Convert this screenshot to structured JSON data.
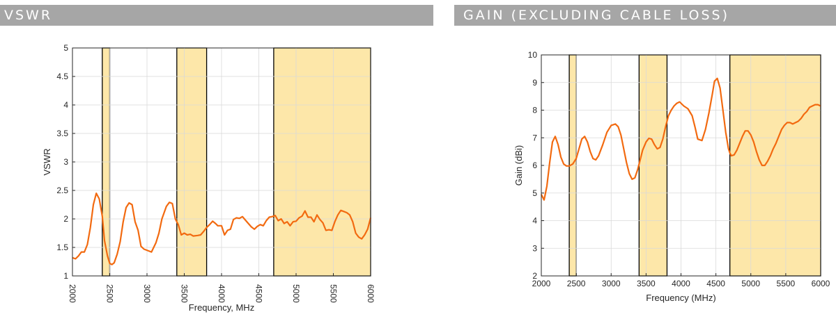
{
  "headers": {
    "vswr": "VSWR",
    "gain": "GAIN (EXCLUDING CABLE LOSS)"
  },
  "colors": {
    "curve": "#f26a10",
    "band_fill": "#fde7a9",
    "band_edge": "#000000",
    "grid": "#d9d9d9",
    "header_bg": "#a6a6a6"
  },
  "chart_data": [
    {
      "type": "line",
      "xlabel": "Frequency, MHz",
      "ylabel": "VSWR",
      "xlim": [
        2000,
        6000
      ],
      "ylim": [
        1,
        5
      ],
      "xticks": [
        "2000",
        "2500",
        "3000",
        "3500",
        "4000",
        "4500",
        "5000",
        "5500",
        "6000"
      ],
      "yticks": [
        "1",
        "1.5",
        "2",
        "2.5",
        "3",
        "3.5",
        "4",
        "4.5",
        "5"
      ],
      "x_tick_rotation": 90,
      "grid": true,
      "shaded_bands": [
        [
          2400,
          2500
        ],
        [
          3400,
          3800
        ],
        [
          4700,
          6000
        ]
      ],
      "series": [
        {
          "x": [
            2000,
            2040,
            2080,
            2120,
            2160,
            2200,
            2240,
            2280,
            2320,
            2360,
            2400,
            2430,
            2470,
            2500,
            2530,
            2560,
            2600,
            2640,
            2680,
            2720,
            2760,
            2800,
            2840,
            2880,
            2920,
            2960,
            3000,
            3060,
            3120,
            3160,
            3200,
            3260,
            3300,
            3340,
            3380,
            3420,
            3460,
            3500,
            3540,
            3580,
            3620,
            3680,
            3720,
            3760,
            3800,
            3840,
            3880,
            3920,
            3950,
            4000,
            4040,
            4080,
            4120,
            4160,
            4200,
            4240,
            4280,
            4320,
            4360,
            4400,
            4440,
            4480,
            4520,
            4560,
            4600,
            4640,
            4680,
            4720,
            4760,
            4800,
            4840,
            4880,
            4920,
            4960,
            5000,
            5040,
            5080,
            5120,
            5160,
            5200,
            5240,
            5280,
            5320,
            5360,
            5400,
            5440,
            5480,
            5520,
            5560,
            5600,
            5640,
            5680,
            5720,
            5760,
            5800,
            5840,
            5880,
            5920,
            5960,
            6000
          ],
          "y": [
            1.32,
            1.3,
            1.35,
            1.42,
            1.42,
            1.55,
            1.85,
            2.25,
            2.45,
            2.35,
            2.05,
            1.62,
            1.35,
            1.22,
            1.2,
            1.23,
            1.38,
            1.6,
            1.95,
            2.2,
            2.28,
            2.25,
            1.95,
            1.8,
            1.52,
            1.47,
            1.45,
            1.42,
            1.58,
            1.75,
            2.0,
            2.22,
            2.29,
            2.27,
            2.0,
            1.9,
            1.72,
            1.75,
            1.72,
            1.73,
            1.7,
            1.71,
            1.72,
            1.78,
            1.85,
            1.9,
            1.96,
            1.92,
            1.88,
            1.88,
            1.72,
            1.8,
            1.82,
            1.99,
            2.02,
            2.01,
            2.04,
            1.98,
            1.92,
            1.86,
            1.82,
            1.87,
            1.9,
            1.88,
            1.97,
            2.03,
            2.04,
            2.06,
            1.97,
            2.0,
            1.92,
            1.95,
            1.88,
            1.95,
            1.96,
            2.02,
            2.05,
            2.14,
            2.03,
            2.03,
            1.95,
            2.07,
            1.99,
            1.93,
            1.8,
            1.81,
            1.8,
            1.95,
            2.07,
            2.15,
            2.13,
            2.11,
            2.07,
            1.95,
            1.75,
            1.68,
            1.65,
            1.72,
            1.82,
            2.02
          ]
        }
      ]
    },
    {
      "type": "line",
      "xlabel": "Frequency (MHz)",
      "ylabel": "Gain (dBi)",
      "xlim": [
        2000,
        6000
      ],
      "ylim": [
        2,
        10
      ],
      "xticks": [
        "2000",
        "2500",
        "3000",
        "3500",
        "4000",
        "4500",
        "5000",
        "5500",
        "6000"
      ],
      "yticks": [
        "2",
        "3",
        "4",
        "5",
        "6",
        "7",
        "8",
        "9",
        "10"
      ],
      "grid": true,
      "shaded_bands": [
        [
          2400,
          2500
        ],
        [
          3400,
          3800
        ],
        [
          4700,
          6000
        ]
      ],
      "series": [
        {
          "x": [
            2000,
            2040,
            2080,
            2120,
            2160,
            2200,
            2240,
            2280,
            2320,
            2360,
            2400,
            2450,
            2500,
            2540,
            2580,
            2620,
            2660,
            2700,
            2740,
            2780,
            2820,
            2880,
            2940,
            3000,
            3060,
            3100,
            3140,
            3180,
            3220,
            3260,
            3300,
            3340,
            3380,
            3420,
            3450,
            3500,
            3540,
            3580,
            3620,
            3660,
            3700,
            3740,
            3780,
            3820,
            3860,
            3900,
            3940,
            3980,
            4040,
            4100,
            4160,
            4200,
            4240,
            4300,
            4350,
            4400,
            4450,
            4480,
            4520,
            4560,
            4600,
            4640,
            4680,
            4700,
            4720,
            4760,
            4800,
            4840,
            4880,
            4920,
            4960,
            5000,
            5040,
            5080,
            5120,
            5160,
            5200,
            5240,
            5280,
            5320,
            5360,
            5400,
            5440,
            5480,
            5520,
            5560,
            5600,
            5640,
            5680,
            5720,
            5760,
            5800,
            5840,
            5880,
            5920,
            5960,
            6000
          ],
          "y": [
            4.95,
            4.75,
            5.25,
            6.1,
            6.85,
            7.05,
            6.75,
            6.3,
            6.05,
            5.98,
            5.98,
            6.05,
            6.25,
            6.6,
            6.95,
            7.05,
            6.85,
            6.5,
            6.25,
            6.2,
            6.35,
            6.75,
            7.2,
            7.45,
            7.5,
            7.4,
            7.1,
            6.6,
            6.1,
            5.7,
            5.5,
            5.55,
            5.85,
            6.25,
            6.55,
            6.85,
            6.98,
            6.95,
            6.75,
            6.6,
            6.65,
            6.95,
            7.4,
            7.8,
            8.0,
            8.15,
            8.25,
            8.3,
            8.15,
            8.05,
            7.8,
            7.4,
            6.95,
            6.9,
            7.3,
            7.9,
            8.6,
            9.05,
            9.15,
            8.8,
            8.0,
            7.2,
            6.6,
            6.45,
            6.35,
            6.38,
            6.55,
            6.8,
            7.05,
            7.25,
            7.25,
            7.1,
            6.85,
            6.5,
            6.2,
            6.0,
            6.0,
            6.15,
            6.35,
            6.6,
            6.8,
            7.05,
            7.3,
            7.45,
            7.55,
            7.55,
            7.5,
            7.55,
            7.6,
            7.7,
            7.85,
            7.95,
            8.1,
            8.15,
            8.2,
            8.2,
            8.15
          ]
        }
      ]
    }
  ]
}
